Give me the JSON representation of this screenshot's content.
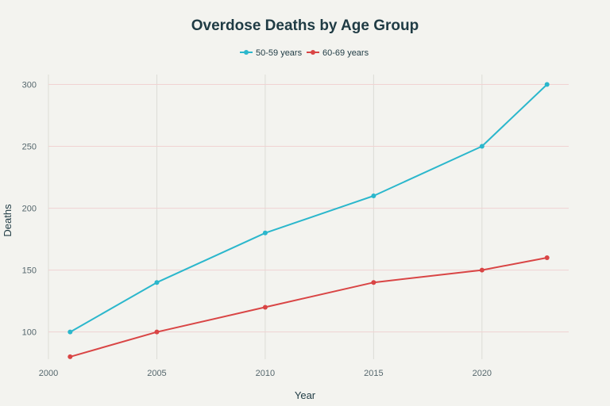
{
  "chart_data": {
    "type": "line",
    "title": "Overdose Deaths by Age Group",
    "xlabel": "Year",
    "ylabel": "Deaths",
    "x": [
      2001,
      2005,
      2010,
      2015,
      2020,
      2023
    ],
    "xlim": [
      2000,
      2024
    ],
    "ylim": [
      78,
      308
    ],
    "x_ticks": [
      2000,
      2005,
      2010,
      2015,
      2020
    ],
    "y_ticks": [
      100,
      150,
      200,
      250,
      300
    ],
    "grid": true,
    "legend_position": "top-center",
    "series": [
      {
        "name": "50-59 years",
        "color": "#2bb7cc",
        "values": [
          100,
          140,
          180,
          210,
          250,
          300
        ]
      },
      {
        "name": "60-69 years",
        "color": "#d94545",
        "values": [
          80,
          100,
          120,
          140,
          150,
          160
        ]
      }
    ]
  },
  "colors": {
    "background": "#f3f3ef",
    "text": "#1f3b44",
    "tick_text": "#55676d",
    "vertical_grid": "#dcdcd6",
    "horizontal_grid": "#f0d2d2"
  }
}
